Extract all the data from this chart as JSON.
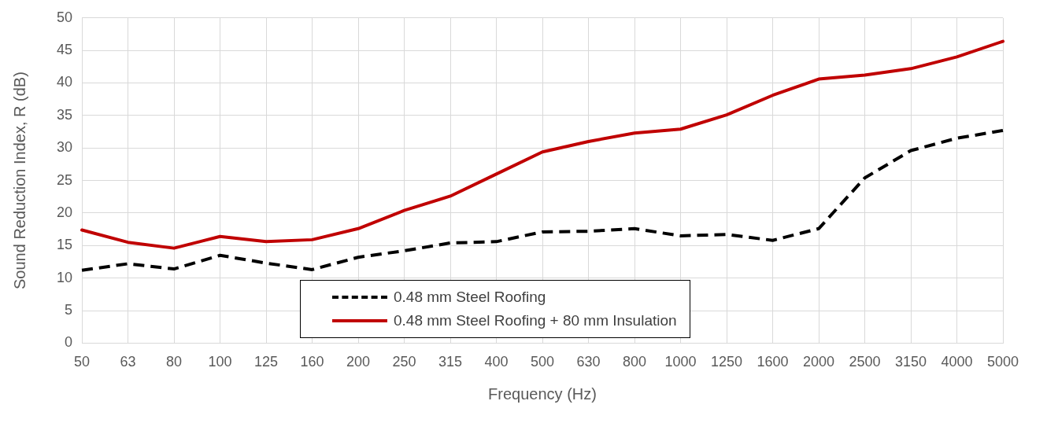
{
  "chart_data": {
    "type": "line",
    "xlabel": "Frequency (Hz)",
    "ylabel": "Sound Reduction Index, R (dB)",
    "categories": [
      "50",
      "63",
      "80",
      "100",
      "125",
      "160",
      "200",
      "250",
      "315",
      "400",
      "500",
      "630",
      "800",
      "1000",
      "1250",
      "1600",
      "2000",
      "2500",
      "3150",
      "4000",
      "5000"
    ],
    "series": [
      {
        "name": "0.48 mm Steel Roofing",
        "color": "#000000",
        "line_style": "dashed",
        "values": [
          11.2,
          12.2,
          11.4,
          13.5,
          12.3,
          11.3,
          13.2,
          14.2,
          15.4,
          15.6,
          17.1,
          17.2,
          17.6,
          16.5,
          16.7,
          15.8,
          17.6,
          25.4,
          29.6,
          31.5,
          32.7
        ]
      },
      {
        "name": "0.48 mm Steel Roofing + 80 mm Insulation",
        "color": "#c00000",
        "line_style": "solid",
        "values": [
          17.4,
          15.5,
          14.6,
          16.4,
          15.6,
          15.9,
          17.6,
          20.4,
          22.6,
          26.0,
          29.4,
          31.0,
          32.3,
          32.9,
          35.1,
          38.1,
          40.6,
          41.2,
          42.2,
          44.0,
          46.4
        ]
      }
    ],
    "ylim": [
      0,
      50
    ],
    "yticks": [
      0,
      5,
      10,
      15,
      20,
      25,
      30,
      35,
      40,
      45,
      50
    ],
    "grid": true,
    "legend": "bottom",
    "marker": "none"
  }
}
